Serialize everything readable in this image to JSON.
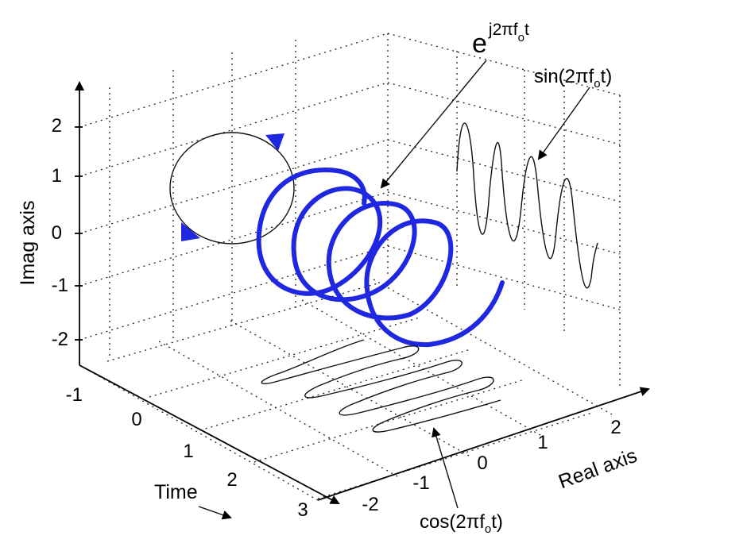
{
  "imag_axis": {
    "label": "Imag axis",
    "ticks": [
      "2",
      "1",
      "0",
      "-1",
      "-2"
    ]
  },
  "time_axis": {
    "label": "Time",
    "ticks": [
      "-1",
      "0",
      "1",
      "2",
      "3"
    ]
  },
  "real_axis": {
    "label": "Real axis",
    "ticks": [
      "-2",
      "-1",
      "0",
      "1",
      "2"
    ]
  },
  "annotations": {
    "exp": {
      "base": "e",
      "exponent": "j2πf",
      "subscript": "o",
      "tail": "t"
    },
    "sin": {
      "head": "sin(2πf",
      "subscript": "o",
      "tail": "t)"
    },
    "cos": {
      "head": "cos(2πf",
      "subscript": "o",
      "tail": "t)"
    }
  },
  "colors": {
    "helix": "#1f28e0",
    "ink": "#000000"
  }
}
